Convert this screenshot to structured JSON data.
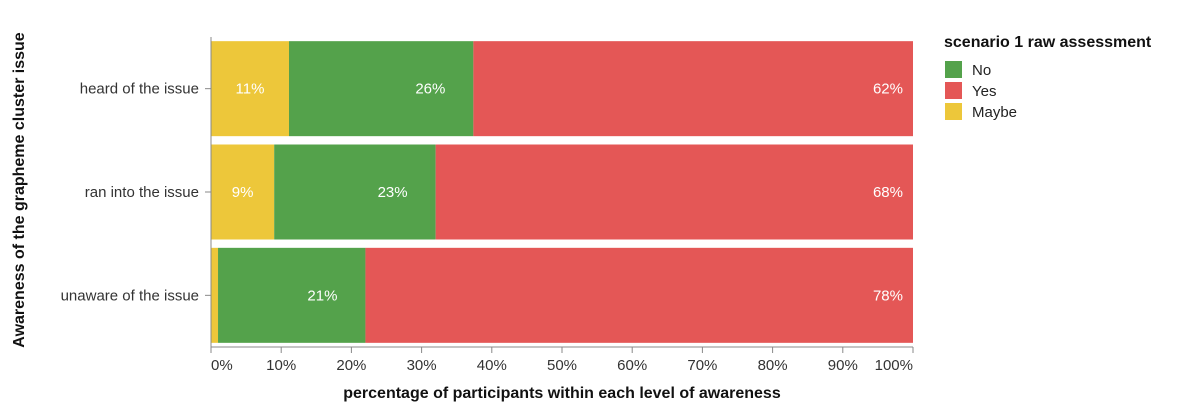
{
  "chart_data": {
    "type": "bar",
    "orientation": "horizontal",
    "stacked": true,
    "normalized": true,
    "categories": [
      "heard of the issue",
      "ran into the issue",
      "unaware of the issue"
    ],
    "series": [
      {
        "name": "Maybe",
        "color": "#edc73a",
        "values": [
          11,
          9,
          1
        ],
        "labels": [
          "11%",
          "9%",
          ""
        ]
      },
      {
        "name": "No",
        "color": "#54a24b",
        "values": [
          26,
          23,
          21
        ],
        "labels": [
          "26%",
          "23%",
          "21%"
        ]
      },
      {
        "name": "Yes",
        "color": "#e45756",
        "values": [
          62,
          68,
          78
        ],
        "labels": [
          "62%",
          "68%",
          "78%"
        ]
      }
    ],
    "xlabel": "percentage of participants within each level of awareness",
    "ylabel": "Awareness of the grapheme cluster issue",
    "xlim": [
      0,
      100
    ],
    "x_ticks": [
      "0%",
      "10%",
      "20%",
      "30%",
      "40%",
      "50%",
      "60%",
      "70%",
      "80%",
      "90%",
      "100%"
    ],
    "grid": false,
    "legend": {
      "title": "scenario 1 raw assessment",
      "placement": "right",
      "entries": [
        {
          "name": "No",
          "color": "#54a24b"
        },
        {
          "name": "Yes",
          "color": "#e45756"
        },
        {
          "name": "Maybe",
          "color": "#edc73a"
        }
      ]
    }
  }
}
